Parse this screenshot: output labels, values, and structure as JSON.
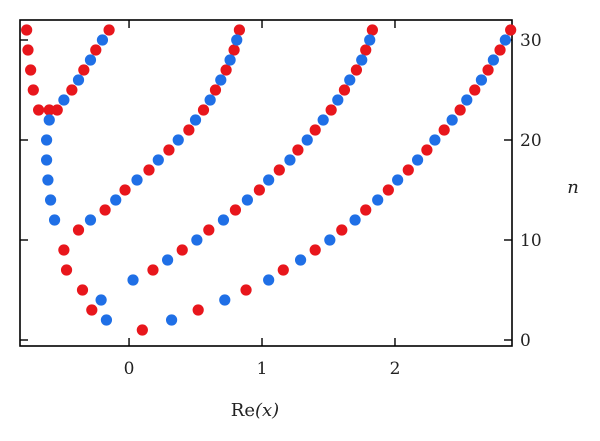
{
  "chart_data": {
    "type": "scatter",
    "xlabel_main": "Re",
    "xlabel_var": "(x)",
    "ylabel": "n",
    "xlim": [
      -0.82,
      2.88
    ],
    "ylim": [
      -0.6,
      32.0
    ],
    "x_ticks": [
      0,
      1,
      2
    ],
    "x_tick_labels": [
      "0",
      "1",
      "2"
    ],
    "y_ticks": [
      0,
      10,
      20,
      30
    ],
    "y_tick_labels": [
      "0",
      "10",
      "20",
      "30"
    ],
    "grid": false,
    "legend": "none",
    "colors": {
      "odd": "#e8161c",
      "even": "#1f6fe6"
    },
    "series": [
      {
        "color_key": "odd",
        "points": [
          [
            0.1,
            1
          ],
          [
            0.52,
            3
          ],
          [
            0.88,
            5
          ],
          [
            1.16,
            7
          ],
          [
            1.4,
            9
          ],
          [
            1.6,
            11
          ],
          [
            1.78,
            13
          ],
          [
            1.95,
            15
          ],
          [
            2.1,
            17
          ],
          [
            2.24,
            19
          ],
          [
            2.37,
            21
          ],
          [
            2.49,
            23
          ],
          [
            2.6,
            25
          ],
          [
            2.7,
            27
          ],
          [
            2.79,
            29
          ],
          [
            2.87,
            31
          ],
          [
            -0.28,
            3
          ],
          [
            -0.35,
            5
          ],
          [
            0.18,
            7
          ],
          [
            0.4,
            9
          ],
          [
            0.6,
            11
          ],
          [
            0.8,
            13
          ],
          [
            0.98,
            15
          ],
          [
            1.13,
            17
          ],
          [
            1.27,
            19
          ],
          [
            1.4,
            21
          ],
          [
            1.52,
            23
          ],
          [
            1.62,
            25
          ],
          [
            1.71,
            27
          ],
          [
            1.78,
            29
          ],
          [
            1.83,
            31
          ],
          [
            -0.47,
            7
          ],
          [
            -0.49,
            9
          ],
          [
            -0.38,
            11
          ],
          [
            -0.18,
            13
          ],
          [
            -0.03,
            15
          ],
          [
            0.15,
            17
          ],
          [
            0.3,
            19
          ],
          [
            0.45,
            21
          ],
          [
            0.56,
            23
          ],
          [
            0.65,
            25
          ],
          [
            0.73,
            27
          ],
          [
            0.79,
            29
          ],
          [
            0.83,
            31
          ],
          [
            -0.6,
            23
          ],
          [
            -0.68,
            23
          ],
          [
            -0.72,
            25
          ],
          [
            -0.74,
            27
          ],
          [
            -0.76,
            29
          ],
          [
            -0.77,
            31
          ],
          [
            -0.54,
            23
          ],
          [
            -0.43,
            25
          ],
          [
            -0.34,
            27
          ],
          [
            -0.25,
            29
          ],
          [
            -0.15,
            31
          ]
        ]
      },
      {
        "color_key": "even",
        "points": [
          [
            0.32,
            2
          ],
          [
            0.72,
            4
          ],
          [
            1.05,
            6
          ],
          [
            1.29,
            8
          ],
          [
            1.51,
            10
          ],
          [
            1.7,
            12
          ],
          [
            1.87,
            14
          ],
          [
            2.02,
            16
          ],
          [
            2.17,
            18
          ],
          [
            2.3,
            20
          ],
          [
            2.43,
            22
          ],
          [
            2.54,
            24
          ],
          [
            2.65,
            26
          ],
          [
            2.74,
            28
          ],
          [
            2.83,
            30
          ],
          [
            -0.17,
            2
          ],
          [
            -0.21,
            4
          ],
          [
            0.03,
            6
          ],
          [
            0.29,
            8
          ],
          [
            0.51,
            10
          ],
          [
            0.71,
            12
          ],
          [
            0.89,
            14
          ],
          [
            1.05,
            16
          ],
          [
            1.21,
            18
          ],
          [
            1.34,
            20
          ],
          [
            1.46,
            22
          ],
          [
            1.57,
            24
          ],
          [
            1.66,
            26
          ],
          [
            1.75,
            28
          ],
          [
            1.81,
            30
          ],
          [
            -0.56,
            12
          ],
          [
            -0.29,
            12
          ],
          [
            -0.1,
            14
          ],
          [
            0.06,
            16
          ],
          [
            0.22,
            18
          ],
          [
            0.37,
            20
          ],
          [
            0.5,
            22
          ],
          [
            0.61,
            24
          ],
          [
            0.69,
            26
          ],
          [
            0.76,
            28
          ],
          [
            0.81,
            30
          ],
          [
            -0.59,
            14
          ],
          [
            -0.61,
            16
          ],
          [
            -0.62,
            18
          ],
          [
            -0.62,
            20
          ],
          [
            -0.6,
            22
          ],
          [
            -0.49,
            24
          ],
          [
            -0.38,
            26
          ],
          [
            -0.29,
            28
          ],
          [
            -0.2,
            30
          ]
        ]
      }
    ]
  }
}
